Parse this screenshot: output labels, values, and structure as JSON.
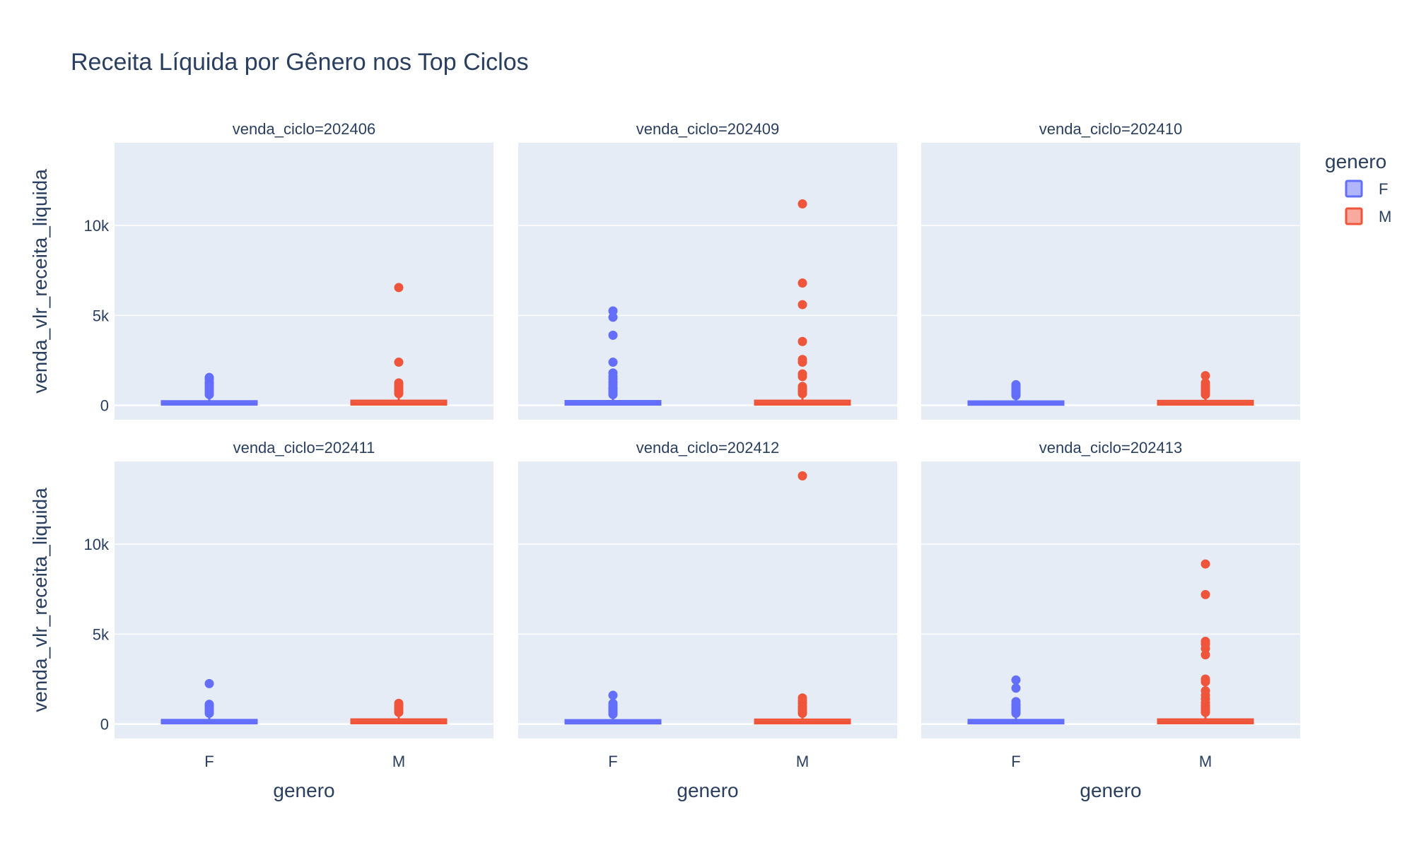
{
  "chart_data": {
    "type": "box",
    "title": "Receita Líquida por Gênero nos Top Ciclos",
    "xlabel": "genero",
    "ylabel": "venda_vlr_receita_liquida",
    "categories": [
      "F",
      "M"
    ],
    "ylim": [
      -800,
      14600
    ],
    "yticks": [
      0,
      5000,
      10000
    ],
    "ytick_labels": [
      "0",
      "5k",
      "10k"
    ],
    "grid": true,
    "legend": {
      "title": "genero",
      "placement": "right",
      "items": [
        {
          "name": "F",
          "color": "#636efa"
        },
        {
          "name": "M",
          "color": "#ef553b"
        }
      ]
    },
    "colors": {
      "plot_bg": "#e5ecf6",
      "grid": "#ffffff",
      "text": "#2a3f5f",
      "F": "#636efa",
      "M": "#ef553b"
    },
    "facets": [
      {
        "label": "venda_ciclo=202406",
        "series": [
          {
            "name": "F",
            "q1": 40,
            "median": 120,
            "q3": 230,
            "upper_fence": 500,
            "outliers": [
              600,
              700,
              800,
              900,
              1000,
              1100,
              1200,
              1300,
              1450,
              1550
            ]
          },
          {
            "name": "M",
            "q1": 45,
            "median": 140,
            "q3": 260,
            "upper_fence": 560,
            "outliers": [
              650,
              750,
              850,
              950,
              1050,
              1150,
              1250,
              2400,
              6550
            ]
          }
        ]
      },
      {
        "label": "venda_ciclo=202409",
        "series": [
          {
            "name": "F",
            "q1": 40,
            "median": 125,
            "q3": 240,
            "upper_fence": 520,
            "outliers": [
              600,
              700,
              800,
              900,
              1000,
              1150,
              1300,
              1450,
              1600,
              1800,
              2400,
              3900,
              4900,
              5250
            ]
          },
          {
            "name": "M",
            "q1": 45,
            "median": 140,
            "q3": 260,
            "upper_fence": 560,
            "outliers": [
              650,
              750,
              850,
              950,
              1050,
              1600,
              1750,
              2400,
              2550,
              3550,
              5600,
              6800,
              11200
            ]
          }
        ]
      },
      {
        "label": "venda_ciclo=202410",
        "series": [
          {
            "name": "F",
            "q1": 35,
            "median": 115,
            "q3": 220,
            "upper_fence": 480,
            "outliers": [
              550,
              650,
              750,
              850,
              950,
              1050,
              1150
            ]
          },
          {
            "name": "M",
            "q1": 40,
            "median": 130,
            "q3": 250,
            "upper_fence": 540,
            "outliers": [
              600,
              700,
              800,
              900,
              1000,
              1100,
              1250,
              1650
            ]
          }
        ]
      },
      {
        "label": "venda_ciclo=202411",
        "series": [
          {
            "name": "F",
            "q1": 40,
            "median": 120,
            "q3": 230,
            "upper_fence": 500,
            "outliers": [
              600,
              700,
              800,
              900,
              1000,
              1100,
              2250
            ]
          },
          {
            "name": "M",
            "q1": 45,
            "median": 140,
            "q3": 260,
            "upper_fence": 560,
            "outliers": [
              650,
              750,
              850,
              950,
              1050,
              1150
            ]
          }
        ]
      },
      {
        "label": "venda_ciclo=202412",
        "series": [
          {
            "name": "F",
            "q1": 35,
            "median": 115,
            "q3": 220,
            "upper_fence": 490,
            "outliers": [
              550,
              650,
              750,
              850,
              950,
              1050,
              1150,
              1600
            ]
          },
          {
            "name": "M",
            "q1": 40,
            "median": 130,
            "q3": 250,
            "upper_fence": 540,
            "outliers": [
              600,
              700,
              800,
              900,
              1000,
              1150,
              1300,
              1450,
              13800
            ]
          }
        ]
      },
      {
        "label": "venda_ciclo=202413",
        "series": [
          {
            "name": "F",
            "q1": 40,
            "median": 120,
            "q3": 230,
            "upper_fence": 500,
            "outliers": [
              600,
              700,
              800,
              900,
              1000,
              1100,
              1250,
              2000,
              2450
            ]
          },
          {
            "name": "M",
            "q1": 45,
            "median": 140,
            "q3": 260,
            "upper_fence": 560,
            "outliers": [
              650,
              750,
              850,
              950,
              1050,
              1200,
              1400,
              1600,
              1850,
              2350,
              2500,
              3850,
              4200,
              4450,
              4600,
              7200,
              8900
            ]
          }
        ]
      }
    ]
  }
}
